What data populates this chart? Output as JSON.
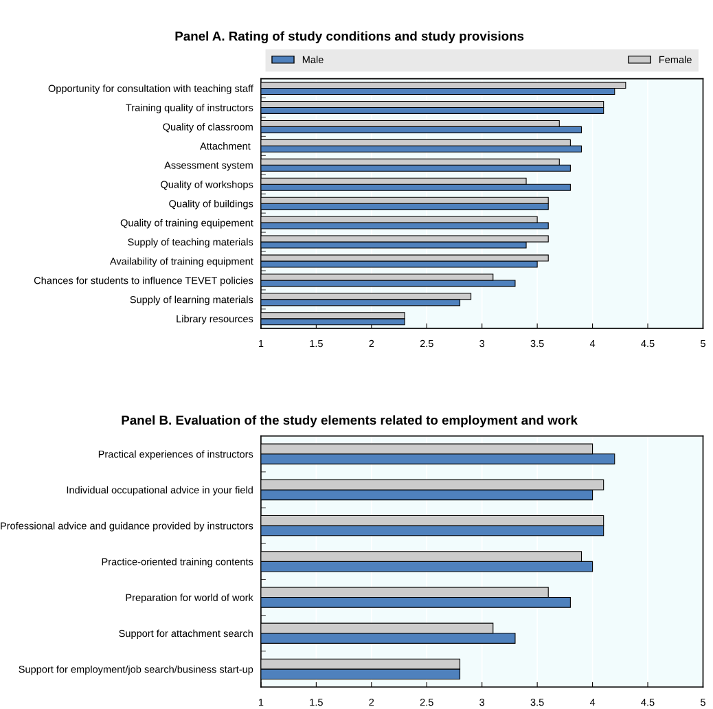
{
  "chart_data": [
    {
      "type": "bar",
      "orientation": "horizontal",
      "title": "Panel A. Rating of study conditions and study provisions",
      "categories": [
        "Opportunity for consultation with teaching staff",
        "Training quality of instructors",
        "Quality of classroom",
        "Attachment ",
        "Assessment system",
        "Quality of workshops",
        "Quality of buildings",
        "Quality of training equipement",
        "Supply of teaching materials",
        "Availability of training equipment",
        "Chances for students to influence TEVET policies",
        "Supply of learning materials",
        "Library resources"
      ],
      "series": [
        {
          "name": "Male",
          "color": "#4f81bd",
          "values": [
            4.2,
            4.1,
            3.9,
            3.9,
            3.8,
            3.8,
            3.6,
            3.6,
            3.4,
            3.5,
            3.3,
            2.8,
            2.3
          ]
        },
        {
          "name": "Female",
          "color": "#cccccc",
          "values": [
            4.3,
            4.1,
            3.7,
            3.8,
            3.7,
            3.4,
            3.6,
            3.5,
            3.6,
            3.6,
            3.1,
            2.9,
            2.3
          ]
        }
      ],
      "xlim": [
        1,
        5
      ],
      "xticks": [
        1,
        1.5,
        2,
        2.5,
        3,
        3.5,
        4,
        4.5,
        5
      ],
      "grid": "x",
      "legend": "top"
    },
    {
      "type": "bar",
      "orientation": "horizontal",
      "title": "Panel B. Evaluation of the study elements related to employment and work",
      "categories": [
        "Practical experiences of instructors",
        "Individual occupational advice in your field",
        "Professional advice and guidance provided by instructors",
        "Practice-oriented training contents",
        "Preparation for world of work",
        "Support for attachment search",
        "Support for employment/job search/business start-up"
      ],
      "series": [
        {
          "color": "#4f81bd",
          "values": [
            4.2,
            4.0,
            4.1,
            4.0,
            3.8,
            3.3,
            2.8
          ]
        },
        {
          "color": "#cccccc",
          "values": [
            4.0,
            4.1,
            4.1,
            3.9,
            3.6,
            3.1,
            2.8
          ]
        }
      ],
      "xlim": [
        1,
        5
      ],
      "xticks": [
        1,
        1.5,
        2,
        2.5,
        3,
        3.5,
        4,
        4.5,
        5
      ],
      "grid": "x",
      "legend": false
    }
  ]
}
